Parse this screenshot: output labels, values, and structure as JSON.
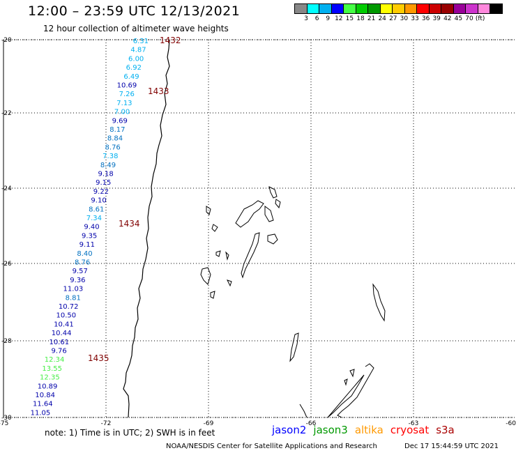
{
  "header": {
    "title": "12:00 – 23:59 UTC 12/13/2021",
    "subtitle": "12 hour collection of altimeter wave heights"
  },
  "color_scale": {
    "labels": [
      "3",
      "6",
      "9",
      "12",
      "15",
      "18",
      "21",
      "24",
      "27",
      "30",
      "33",
      "36",
      "39",
      "42",
      "45",
      "70",
      "(ft)"
    ],
    "colors": [
      "#888888",
      "#00ffff",
      "#00b0f0",
      "#0000ff",
      "#44ff44",
      "#00cc00",
      "#009900",
      "#ffff00",
      "#ffcc00",
      "#ff9900",
      "#ff0000",
      "#cc0000",
      "#990000",
      "#990099",
      "#cc33cc",
      "#ff88dd",
      "#000000"
    ]
  },
  "axes": {
    "lat_labels": [
      "-20",
      "-22",
      "-24",
      "-26",
      "-28",
      "-30"
    ],
    "lon_labels": [
      "-75",
      "-72",
      "-69",
      "-66",
      "-63",
      "-60"
    ]
  },
  "pass_labels": [
    "1432",
    "1433",
    "1434",
    "1435"
  ],
  "wave_heights": [
    {
      "v": "6.31",
      "c": "#00b0f0"
    },
    {
      "v": "4.87",
      "c": "#00b0f0"
    },
    {
      "v": "6.00",
      "c": "#00b0f0"
    },
    {
      "v": "6.92",
      "c": "#00b0f0"
    },
    {
      "v": "6.49",
      "c": "#00b0f0"
    },
    {
      "v": "10.69",
      "c": "#0000aa"
    },
    {
      "v": "7.26",
      "c": "#00b0f0"
    },
    {
      "v": "7.13",
      "c": "#00b0f0"
    },
    {
      "v": "7.00",
      "c": "#00b0f0"
    },
    {
      "v": "9.69",
      "c": "#0000aa"
    },
    {
      "v": "8.17",
      "c": "#0070c0"
    },
    {
      "v": "8.84",
      "c": "#0070c0"
    },
    {
      "v": "8.76",
      "c": "#0070c0"
    },
    {
      "v": "7.38",
      "c": "#00b0f0"
    },
    {
      "v": "8.49",
      "c": "#0070c0"
    },
    {
      "v": "9.18",
      "c": "#0000aa"
    },
    {
      "v": "9.15",
      "c": "#0000aa"
    },
    {
      "v": "9.22",
      "c": "#0000aa"
    },
    {
      "v": "9.10",
      "c": "#0000aa"
    },
    {
      "v": "8.61",
      "c": "#0070c0"
    },
    {
      "v": "7.34",
      "c": "#00b0f0"
    },
    {
      "v": "9.40",
      "c": "#0000aa"
    },
    {
      "v": "9.35",
      "c": "#0000aa"
    },
    {
      "v": "9.11",
      "c": "#0000aa"
    },
    {
      "v": "8.40",
      "c": "#0070c0"
    },
    {
      "v": "8.76",
      "c": "#0070c0"
    },
    {
      "v": "9.57",
      "c": "#0000aa"
    },
    {
      "v": "9.36",
      "c": "#0000aa"
    },
    {
      "v": "11.03",
      "c": "#0000aa"
    },
    {
      "v": "8.81",
      "c": "#0070c0"
    },
    {
      "v": "10.72",
      "c": "#0000aa"
    },
    {
      "v": "10.50",
      "c": "#0000aa"
    },
    {
      "v": "10.41",
      "c": "#0000aa"
    },
    {
      "v": "10.44",
      "c": "#0000aa"
    },
    {
      "v": "10.61",
      "c": "#0000aa"
    },
    {
      "v": "9.76",
      "c": "#0000aa"
    },
    {
      "v": "12.34",
      "c": "#44ee44"
    },
    {
      "v": "13.55",
      "c": "#44ee44"
    },
    {
      "v": "12.35",
      "c": "#44ee44"
    },
    {
      "v": "10.89",
      "c": "#0000aa"
    },
    {
      "v": "10.84",
      "c": "#0000aa"
    },
    {
      "v": "11.64",
      "c": "#0000aa"
    },
    {
      "v": "11.05",
      "c": "#0000aa"
    }
  ],
  "footer": {
    "note": "note: 1) Time is in UTC; 2) SWH is in feet",
    "satellites": [
      {
        "name": "jason2",
        "color": "#0000ff"
      },
      {
        "name": "jason3",
        "color": "#009900"
      },
      {
        "name": "altika",
        "color": "#ff9900"
      },
      {
        "name": "cryosat",
        "color": "#ff0000"
      },
      {
        "name": "s3a",
        "color": "#aa0000"
      }
    ],
    "credit": "NOAA/NESDIS Center for Satellite Applications and Research",
    "timestamp": "Dec 17 15:44:59 UTC 2021"
  }
}
